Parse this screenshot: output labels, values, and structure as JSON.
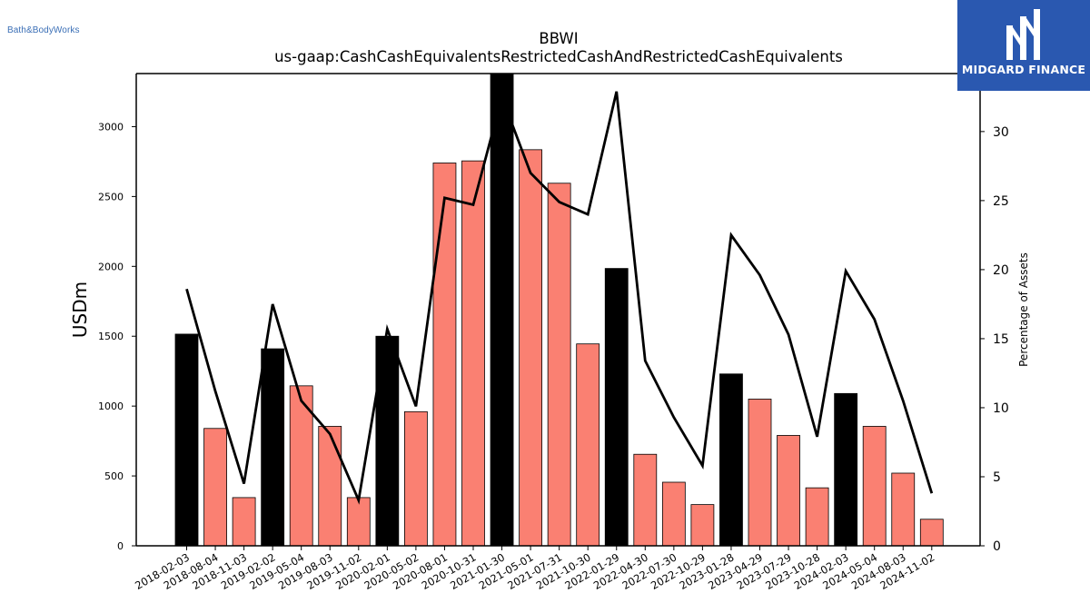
{
  "branding": {
    "left_logo_text": "Bath&BodyWorks",
    "right_logo_text": "MIDGARD FINANCE",
    "right_logo_bg": "#2a58b0"
  },
  "chart_data": {
    "type": "bar",
    "title": "BBWI",
    "subtitle": "us-gaap:CashCashEquivalentsRestrictedCashAndRestrictedCashEquivalents",
    "ylabel": "USDm",
    "y2label": "Percentage of Assets",
    "ylim": [
      0,
      3380
    ],
    "y2lim": [
      0,
      34.2
    ],
    "yticks": [
      0,
      500,
      1000,
      1500,
      2000,
      2500,
      3000
    ],
    "y2ticks": [
      0,
      5,
      10,
      15,
      20,
      25,
      30
    ],
    "grid": false,
    "categories": [
      "2018-02-03",
      "2018-08-04",
      "2018-11-03",
      "2019-02-02",
      "2019-05-04",
      "2019-08-03",
      "2019-11-02",
      "2020-02-01",
      "2020-05-02",
      "2020-08-01",
      "2020-10-31",
      "2021-01-30",
      "2021-05-01",
      "2021-07-31",
      "2021-10-30",
      "2022-01-29",
      "2022-04-30",
      "2022-07-30",
      "2022-10-29",
      "2023-01-28",
      "2023-04-29",
      "2023-07-29",
      "2023-10-28",
      "2024-02-03",
      "2024-05-04",
      "2024-08-03",
      "2024-11-02"
    ],
    "series": [
      {
        "type": "bar",
        "values": [
          1515,
          840,
          345,
          1410,
          1145,
          855,
          345,
          1500,
          960,
          2740,
          2755,
          3380,
          2835,
          2595,
          1445,
          1985,
          655,
          455,
          295,
          1230,
          1050,
          790,
          415,
          1090,
          855,
          520,
          190
        ],
        "year_end": [
          true,
          false,
          false,
          true,
          false,
          false,
          false,
          true,
          false,
          false,
          false,
          true,
          false,
          false,
          false,
          true,
          false,
          false,
          false,
          true,
          false,
          false,
          false,
          true,
          false,
          false,
          false
        ]
      },
      {
        "type": "line",
        "axis": "right",
        "values": [
          18.6,
          11.2,
          4.5,
          17.5,
          10.5,
          8.1,
          3.3,
          15.7,
          10.1,
          25.2,
          24.7,
          32.5,
          27.0,
          24.9,
          24.0,
          32.9,
          13.4,
          9.3,
          5.8,
          22.5,
          19.6,
          15.3,
          7.9,
          19.9,
          16.4,
          10.5,
          3.8
        ]
      }
    ],
    "colors": {
      "year_end_bar": "#000000",
      "quarter_bar": "#fa8072",
      "line": "#000000"
    }
  }
}
